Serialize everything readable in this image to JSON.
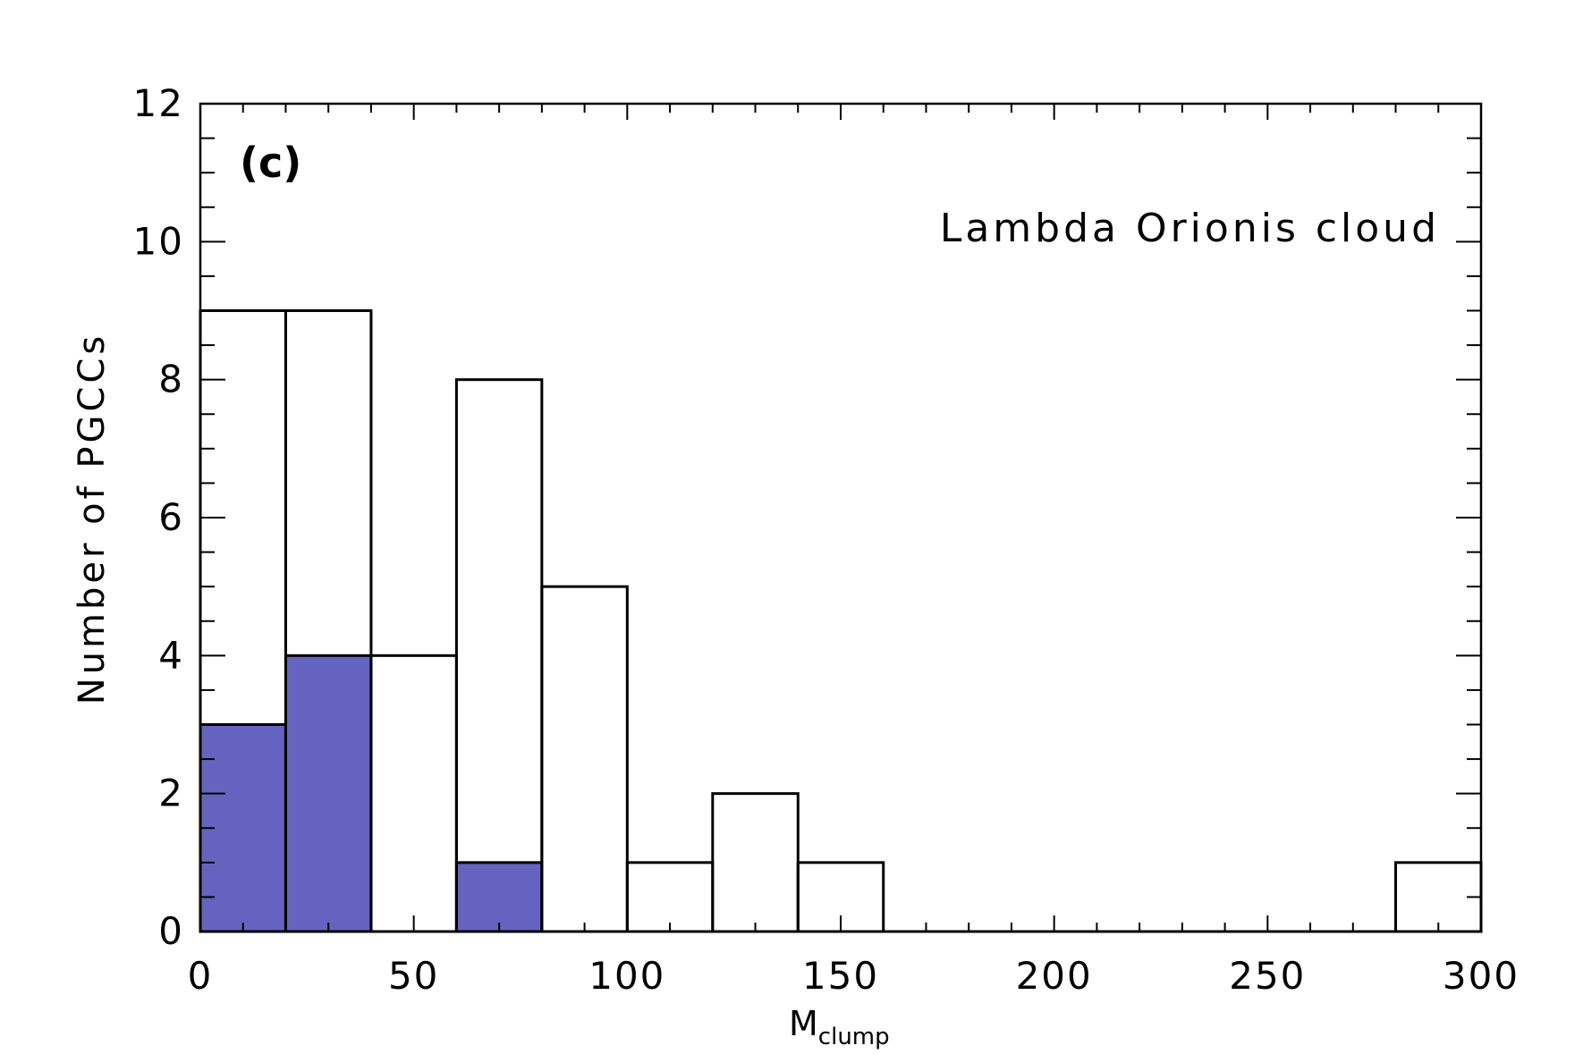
{
  "chart_data": {
    "type": "bar",
    "panel_label": "(c)",
    "annotation": "Lambda Orionis cloud",
    "xlabel": {
      "main": "M",
      "subscript": "clump"
    },
    "ylabel": "Number of PGCCs",
    "xlim": [
      0,
      300
    ],
    "ylim": [
      0,
      12
    ],
    "x_ticks": [
      "0",
      "50",
      "100",
      "150",
      "200",
      "250",
      "300"
    ],
    "y_ticks": [
      "0",
      "2",
      "4",
      "6",
      "8",
      "10",
      "12"
    ],
    "bin_width": 20,
    "bin_starts": [
      0,
      20,
      40,
      60,
      80,
      100,
      120,
      140,
      160,
      180,
      200,
      220,
      240,
      260,
      280
    ],
    "series": [
      {
        "style": "outline",
        "color": "#000000",
        "values": [
          9,
          9,
          4,
          8,
          5,
          1,
          2,
          1,
          0,
          0,
          0,
          0,
          0,
          0,
          1
        ]
      },
      {
        "style": "filled",
        "color": "#6464c0",
        "values": [
          3,
          4,
          0,
          1,
          0,
          0,
          0,
          0,
          0,
          0,
          0,
          0,
          0,
          0,
          0
        ]
      }
    ],
    "grid": false
  }
}
